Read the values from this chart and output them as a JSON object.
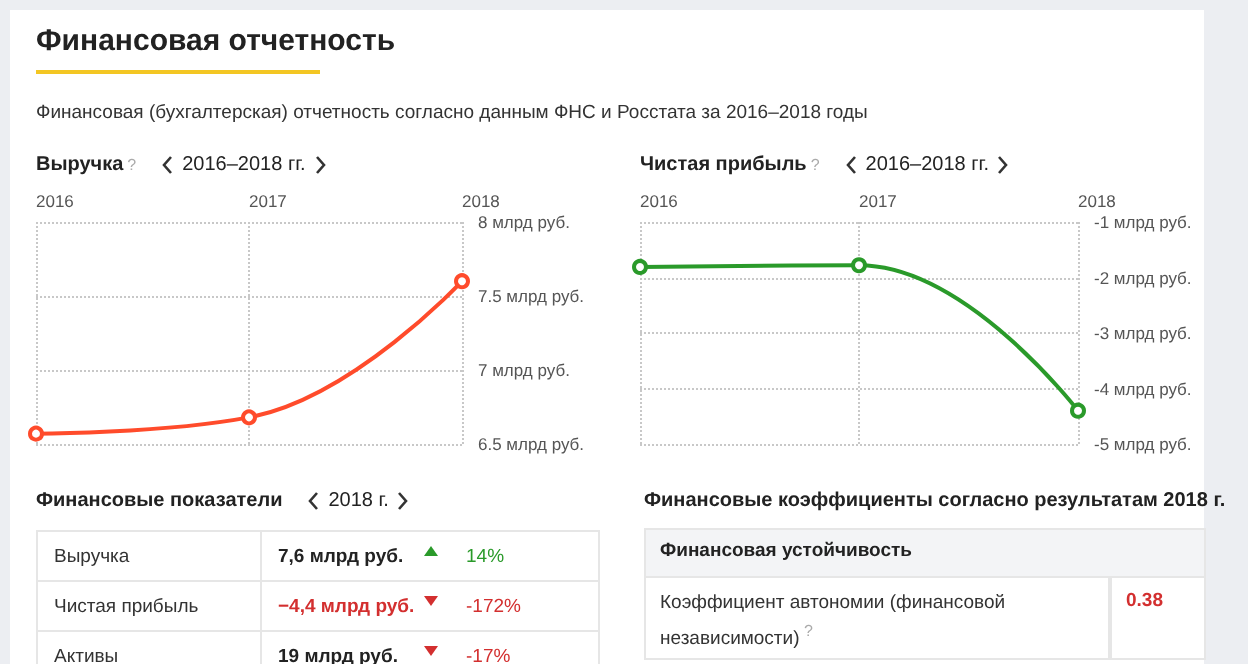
{
  "chart_data": [
    {
      "type": "other",
      "title": "Финансовая отчетность",
      "subtitle": "Финансовая (бухгалтерская) отчетность согласно данным ФНС и Росстата за 2016–2018 годы"
    },
    {
      "type": "line",
      "title": "Выручка",
      "subtitle": "2016–2018 гг.",
      "annotations": [
        "?"
      ],
      "categories": [
        "2016",
        "2017",
        "2018"
      ],
      "series": [
        {
          "color": "#ff4b2b",
          "values": [
            6.57,
            6.68,
            7.6
          ]
        }
      ],
      "ylim": [
        6.5,
        8
      ],
      "yticks": [
        {
          "value": 6.5,
          "label": "6.5 млрд руб."
        },
        {
          "value": 7,
          "label": "7 млрд руб."
        },
        {
          "value": 7.5,
          "label": "7.5 млрд руб."
        },
        {
          "value": 8,
          "label": "8 млрд руб."
        }
      ],
      "grid": true,
      "marker": "circle",
      "line_style": "solid"
    },
    {
      "type": "line",
      "title": "Чистая прибыль",
      "subtitle": "2016–2018 гг.",
      "annotations": [
        "?"
      ],
      "categories": [
        "2016",
        "2017",
        "2018"
      ],
      "series": [
        {
          "color": "#2a9a2a",
          "values": [
            -1.81,
            -1.78,
            -4.4
          ]
        }
      ],
      "ylim": [
        -5,
        -1
      ],
      "yticks": [
        {
          "value": -5,
          "label": "-5 млрд руб."
        },
        {
          "value": -4,
          "label": "-4 млрд руб."
        },
        {
          "value": -3,
          "label": "-3 млрд руб."
        },
        {
          "value": -2,
          "label": "-2 млрд руб."
        },
        {
          "value": -1,
          "label": "-1 млрд руб."
        }
      ],
      "grid": true,
      "marker": "circle",
      "line_style": "solid"
    },
    {
      "type": "other",
      "title": "Финансовые показатели",
      "subtitle": "2018 г.",
      "annotations": [
        "Выручка",
        "7,6 млрд руб.",
        "14%",
        "Чистая прибыль",
        "−4,4 млрд руб.",
        "-172%",
        "Активы",
        "19 млрд руб.",
        "-17%"
      ]
    },
    {
      "type": "other",
      "title": "Финансовые коэффициенты согласно результатам 2018 г.",
      "annotations": [
        "Финансовая устойчивость",
        "Коэффициент автономии (финансовой независимости)",
        "?",
        "0.38"
      ]
    }
  ]
}
